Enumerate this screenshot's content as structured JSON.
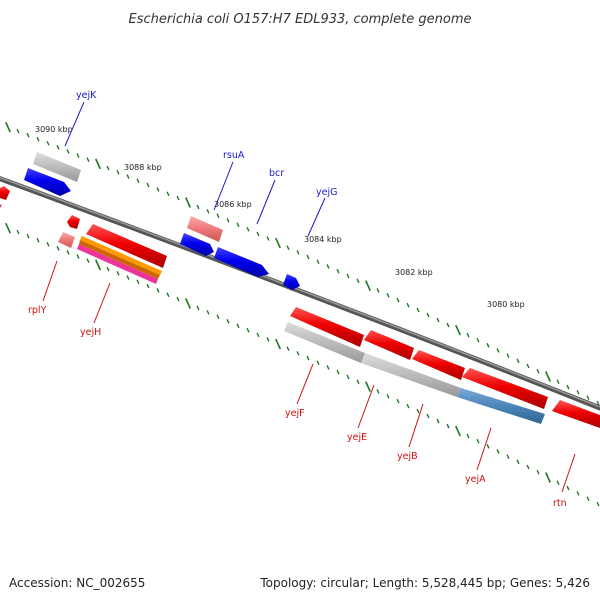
{
  "title": "Escherichia coli O157:H7 EDL933, complete genome",
  "footer": {
    "accession": "Accession: NC_002655",
    "topology": "Topology: circular; Length: 5,528,445 bp; Genes: 5,426"
  },
  "scale_labels": [
    "3090 kbp",
    "3088 kbp",
    "3086 kbp",
    "3084 kbp",
    "3082 kbp",
    "3080 kbp"
  ],
  "genes": {
    "forward": [
      {
        "name": "yejK",
        "color": "#1a1acc"
      },
      {
        "name": "rsuA",
        "color": "#1a1acc"
      },
      {
        "name": "bcr",
        "color": "#1a1acc"
      },
      {
        "name": "yejG",
        "color": "#1a1acc"
      }
    ],
    "reverse": [
      {
        "name": "rplY",
        "color": "#cc1111"
      },
      {
        "name": "yejH",
        "color": "#cc1111"
      },
      {
        "name": "yejF",
        "color": "#cc1111"
      },
      {
        "name": "yejE",
        "color": "#cc1111"
      },
      {
        "name": "yejB",
        "color": "#cc1111"
      },
      {
        "name": "yejA",
        "color": "#cc1111"
      },
      {
        "name": "rtn",
        "color": "#cc1111"
      }
    ]
  },
  "colors": {
    "cds_forward": "#0000ee",
    "cds_reverse": "#ee0000",
    "gene_grey": "#bbbbbb",
    "pink": "#ee7777",
    "orange": "#ff9900",
    "magenta": "#ee3399",
    "steel_blue": "#4a86b8",
    "backbone": "#777777",
    "ticks": "#227722"
  }
}
